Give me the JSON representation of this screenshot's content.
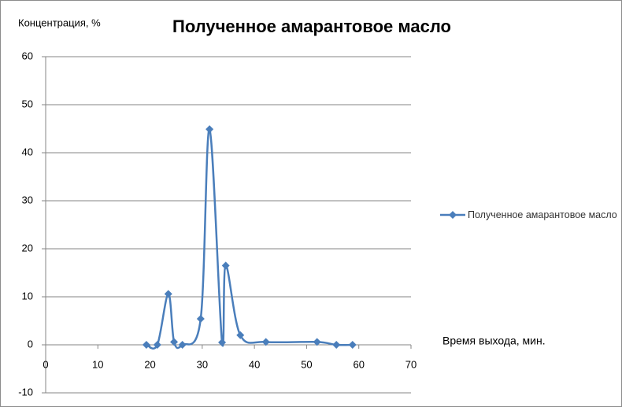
{
  "chart_data": {
    "type": "line",
    "title": "Полученное амарантовое масло",
    "y_label": "Концентрация, %",
    "x_label": "Время выхода, мин.",
    "xlim": [
      0,
      70
    ],
    "xticks": [
      0,
      10,
      20,
      30,
      40,
      50,
      60,
      70
    ],
    "ylim": [
      -10,
      60
    ],
    "yticks": [
      -10,
      0,
      10,
      20,
      30,
      40,
      50,
      60
    ],
    "grid": true,
    "smooth": true,
    "legend": "right",
    "x": [
      19.3,
      21.4,
      23.5,
      24.6,
      26.2,
      29.7,
      31.4,
      33.8,
      34.5,
      37.3,
      42.2,
      52.0,
      55.7,
      58.8
    ],
    "series": [
      {
        "name": "Полученное амарантовое масло",
        "color": "#4a7ebb",
        "values": [
          0,
          0,
          10.6,
          0.6,
          0,
          5.4,
          44.9,
          0.5,
          16.5,
          2.0,
          0.6,
          0.6,
          0,
          0
        ]
      }
    ]
  }
}
